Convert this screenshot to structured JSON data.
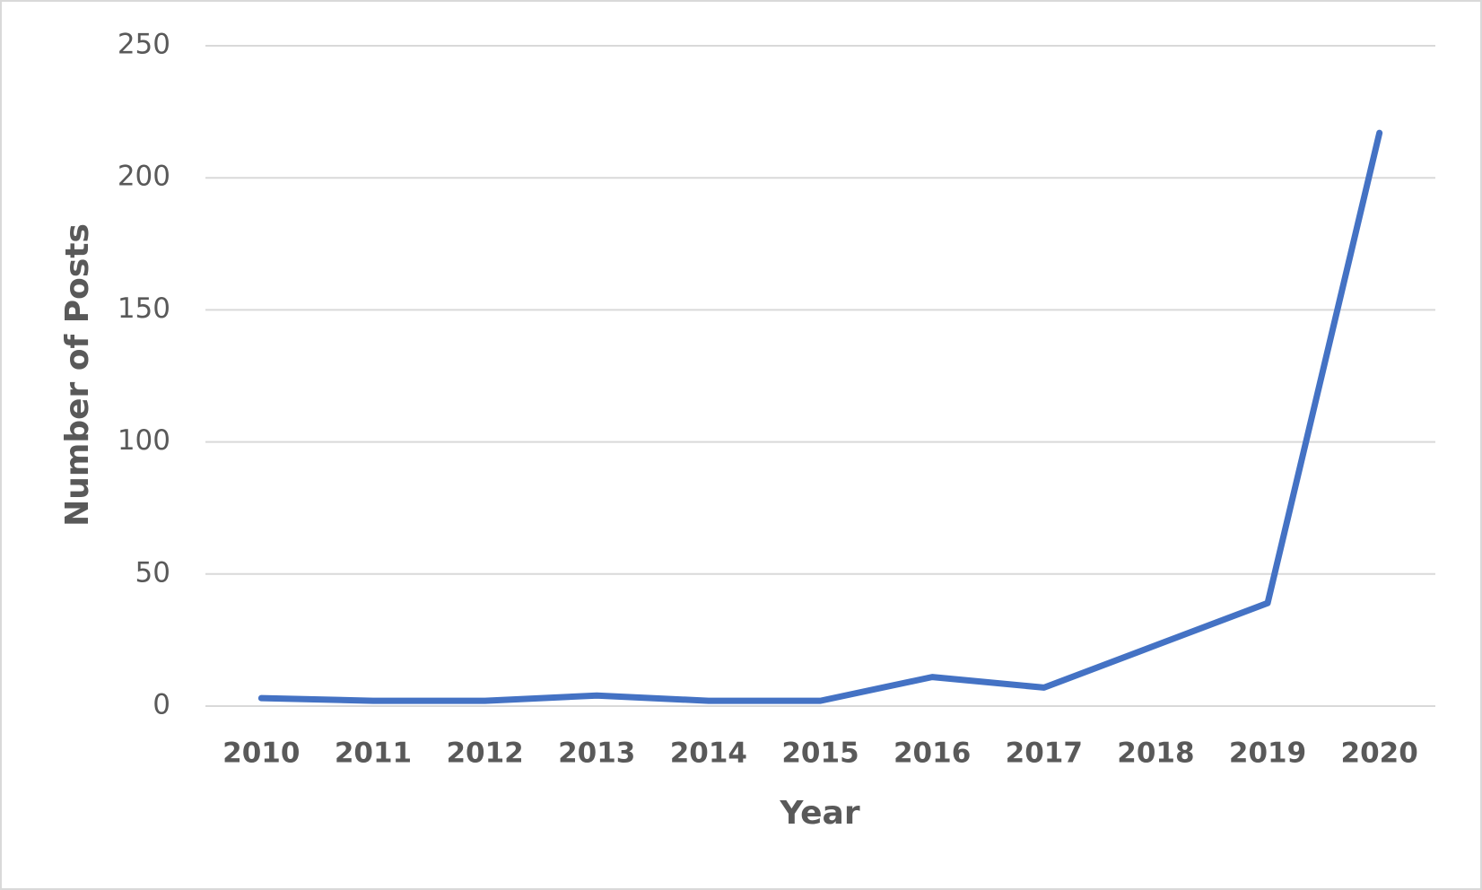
{
  "chart_data": {
    "type": "line",
    "x_label": "Year",
    "y_label": "Number of Posts",
    "categories": [
      "2010",
      "2011",
      "2012",
      "2013",
      "2014",
      "2015",
      "2016",
      "2017",
      "2018",
      "2019",
      "2020"
    ],
    "series": [
      {
        "name": "Number of Posts",
        "color": "#4472c4",
        "values": [
          3,
          2,
          2,
          4,
          2,
          2,
          11,
          7,
          23,
          39,
          217
        ]
      }
    ],
    "ylim": [
      0,
      250
    ],
    "yticks": [
      0,
      50,
      100,
      150,
      200,
      250
    ],
    "grid": true
  }
}
